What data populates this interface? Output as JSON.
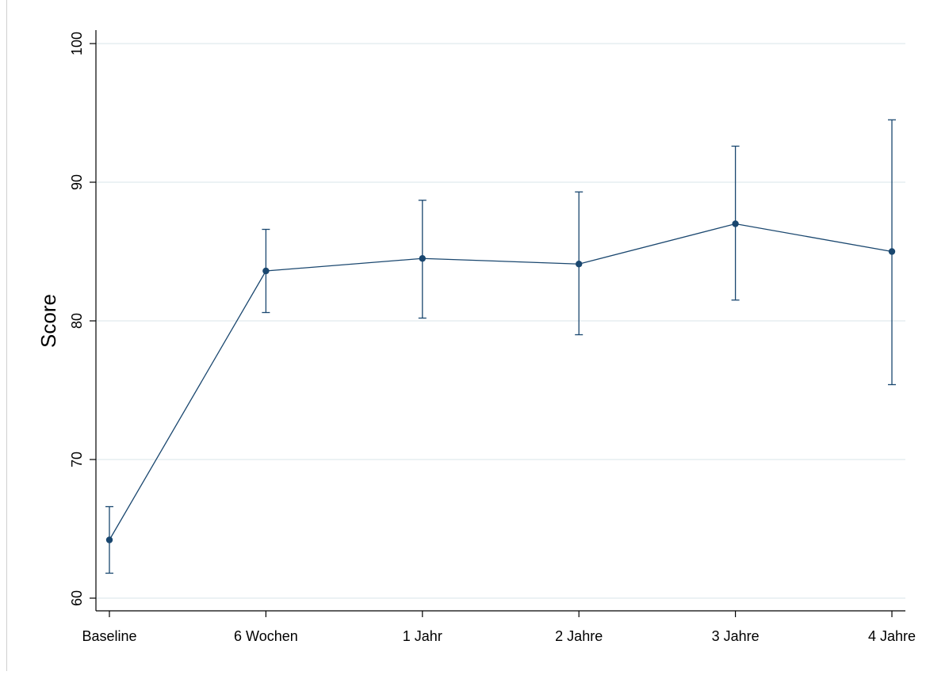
{
  "chart_data": {
    "type": "line",
    "title": "",
    "xlabel": "",
    "ylabel": "Score",
    "categories": [
      "Baseline",
      "6 Wochen",
      "1 Jahr",
      "2 Jahre",
      "3 Jahre",
      "4 Jahre"
    ],
    "series": [
      {
        "values": [
          64.2,
          83.6,
          84.5,
          84.1,
          87.0,
          85.0
        ],
        "ci_lower": [
          61.8,
          80.6,
          80.2,
          79.0,
          81.5,
          75.4
        ],
        "ci_upper": [
          66.6,
          86.6,
          88.7,
          89.3,
          92.6,
          94.5
        ]
      }
    ],
    "ylim": [
      60,
      100
    ],
    "yticks": [
      "60",
      "70",
      "80",
      "90",
      "100"
    ],
    "grid": true,
    "legend": "none",
    "colors": {
      "line": "#1a476f",
      "grid": "#e6eef0",
      "axis": "#000000"
    }
  }
}
